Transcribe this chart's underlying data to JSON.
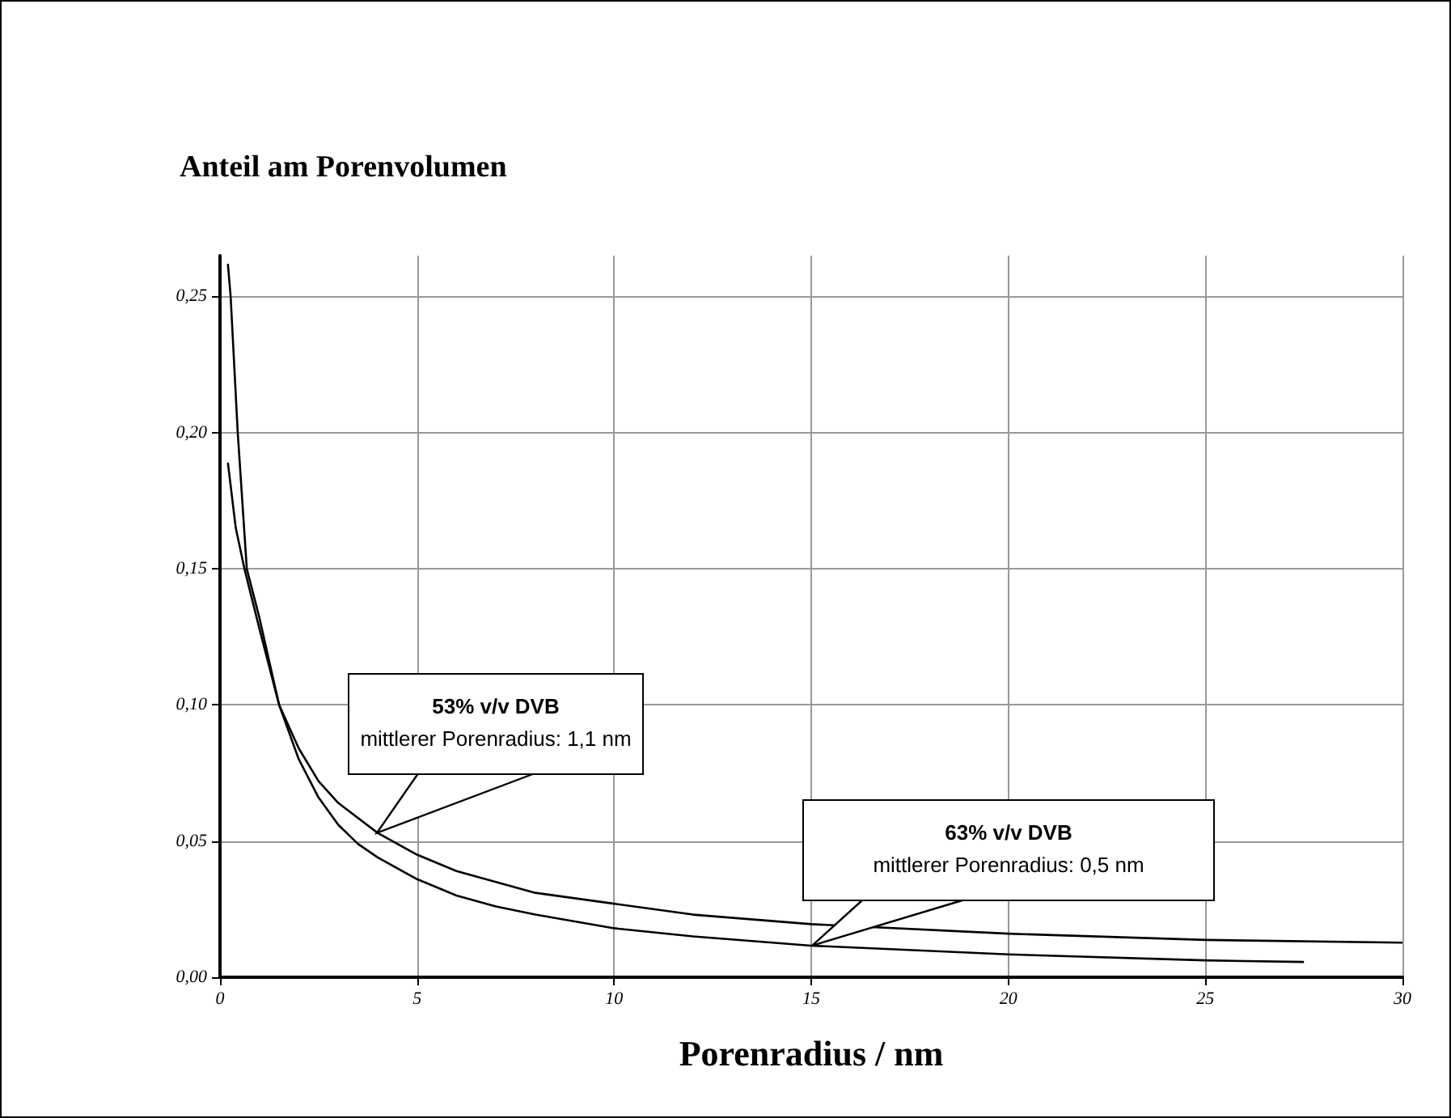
{
  "chart_data": {
    "type": "line",
    "title": "Anteil am Porenvolumen",
    "xlabel": "Porenradius / nm",
    "series": [
      {
        "color": "#000000",
        "x": [
          0.2,
          0.27,
          0.45,
          0.68,
          1,
          1.5,
          2,
          2.5,
          3,
          3.5,
          4,
          5,
          6,
          7,
          8,
          10,
          12,
          15,
          20,
          25,
          27.5
        ],
        "values": [
          0.262,
          0.25,
          0.2,
          0.15,
          0.132,
          0.1,
          0.08,
          0.066,
          0.056,
          0.049,
          0.044,
          0.036,
          0.03,
          0.026,
          0.023,
          0.018,
          0.015,
          0.0116,
          0.0084,
          0.0062,
          0.0056
        ]
      },
      {
        "color": "#000000",
        "x": [
          0.2,
          0.4,
          0.62,
          1,
          1.5,
          2,
          2.5,
          3,
          4,
          5,
          6,
          7,
          8,
          10,
          12,
          15,
          20,
          25,
          30
        ],
        "values": [
          0.189,
          0.165,
          0.15,
          0.128,
          0.1,
          0.084,
          0.072,
          0.064,
          0.053,
          0.045,
          0.039,
          0.035,
          0.031,
          0.027,
          0.023,
          0.0195,
          0.016,
          0.0137,
          0.0127
        ]
      }
    ],
    "annotations": [
      {
        "text": "53% v/v DVB\nmittlerer Porenradius: 1,1 nm",
        "x": 4,
        "y": 0.053
      },
      {
        "text": "63% v/v DVB\nmittlerer Porenradius: 0,5 nm",
        "x": 15,
        "y": 0.0116
      }
    ],
    "xlim": [
      0,
      30
    ],
    "xticks": [
      0,
      5,
      10,
      15,
      20,
      25,
      30
    ],
    "ylim": [
      0,
      0.265
    ],
    "yticks": [
      {
        "value": 0,
        "label": "0,00"
      },
      {
        "value": 0.05,
        "label": "0,05"
      },
      {
        "value": 0.1,
        "label": "0,10"
      },
      {
        "value": 0.15,
        "label": "0,15"
      },
      {
        "value": 0.2,
        "label": "0,20"
      },
      {
        "value": 0.25,
        "label": "0,25"
      }
    ],
    "grid": true,
    "marker": "none",
    "line_style": "solid"
  }
}
